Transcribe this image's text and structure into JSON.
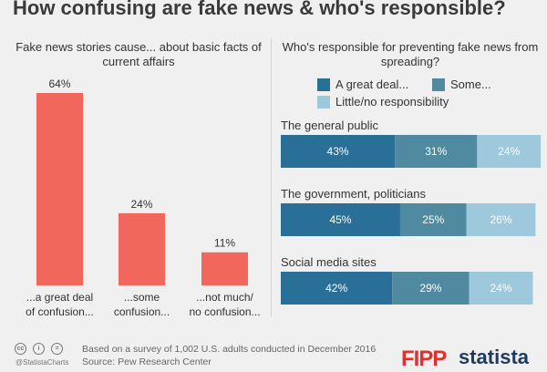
{
  "title": "How confusing are fake news & who's responsible?",
  "left_panel": {
    "subtitle": "Fake news stories cause... about basic facts of current affairs"
  },
  "right_panel": {
    "subtitle": "Who's responsible for preventing fake news from spreading?",
    "legend": [
      "A great deal...",
      "Some...",
      "Little/no responsibility"
    ]
  },
  "colors": {
    "bar_left": "#f2675b",
    "great_deal": "#2a6f97",
    "some": "#4f8aa0",
    "little": "#9ec8db"
  },
  "chart_data": [
    {
      "type": "bar",
      "title": "Fake news stories cause... about basic facts of current affairs",
      "categories": [
        "...a great deal of confusion...",
        "...some confusion...",
        "...not much/ no confusion..."
      ],
      "category_lines": [
        [
          "...a great deal",
          "of confusion..."
        ],
        [
          "...some",
          "confusion..."
        ],
        [
          "...not much/",
          "no confusion..."
        ]
      ],
      "values": [
        64,
        24,
        11
      ],
      "value_labels": [
        "64%",
        "24%",
        "11%"
      ],
      "unit": "%"
    },
    {
      "type": "bar",
      "orientation": "horizontal",
      "stacked": true,
      "title": "Who's responsible for preventing fake news from spreading?",
      "categories": [
        "The general public",
        "The government, politicians",
        "Social media sites"
      ],
      "series": [
        {
          "name": "A great deal...",
          "values": [
            43,
            45,
            42
          ],
          "labels": [
            "43%",
            "45%",
            "42%"
          ]
        },
        {
          "name": "Some...",
          "values": [
            31,
            25,
            29
          ],
          "labels": [
            "31%",
            "25%",
            "29%"
          ]
        },
        {
          "name": "Little/no responsibility",
          "values": [
            24,
            26,
            24
          ],
          "labels": [
            "24%",
            "26%",
            "24%"
          ]
        }
      ],
      "unit": "%",
      "legend_position": "top"
    }
  ],
  "footer": {
    "note": "Based on a survey of 1,002 U.S. adults conducted in December 2016",
    "source": "Source: Pew Research Center",
    "handle": "@StatistaCharts",
    "cc_icons": [
      "cc",
      "i",
      "="
    ]
  },
  "logos": {
    "fipp": "FIPP",
    "statista": "statista"
  }
}
